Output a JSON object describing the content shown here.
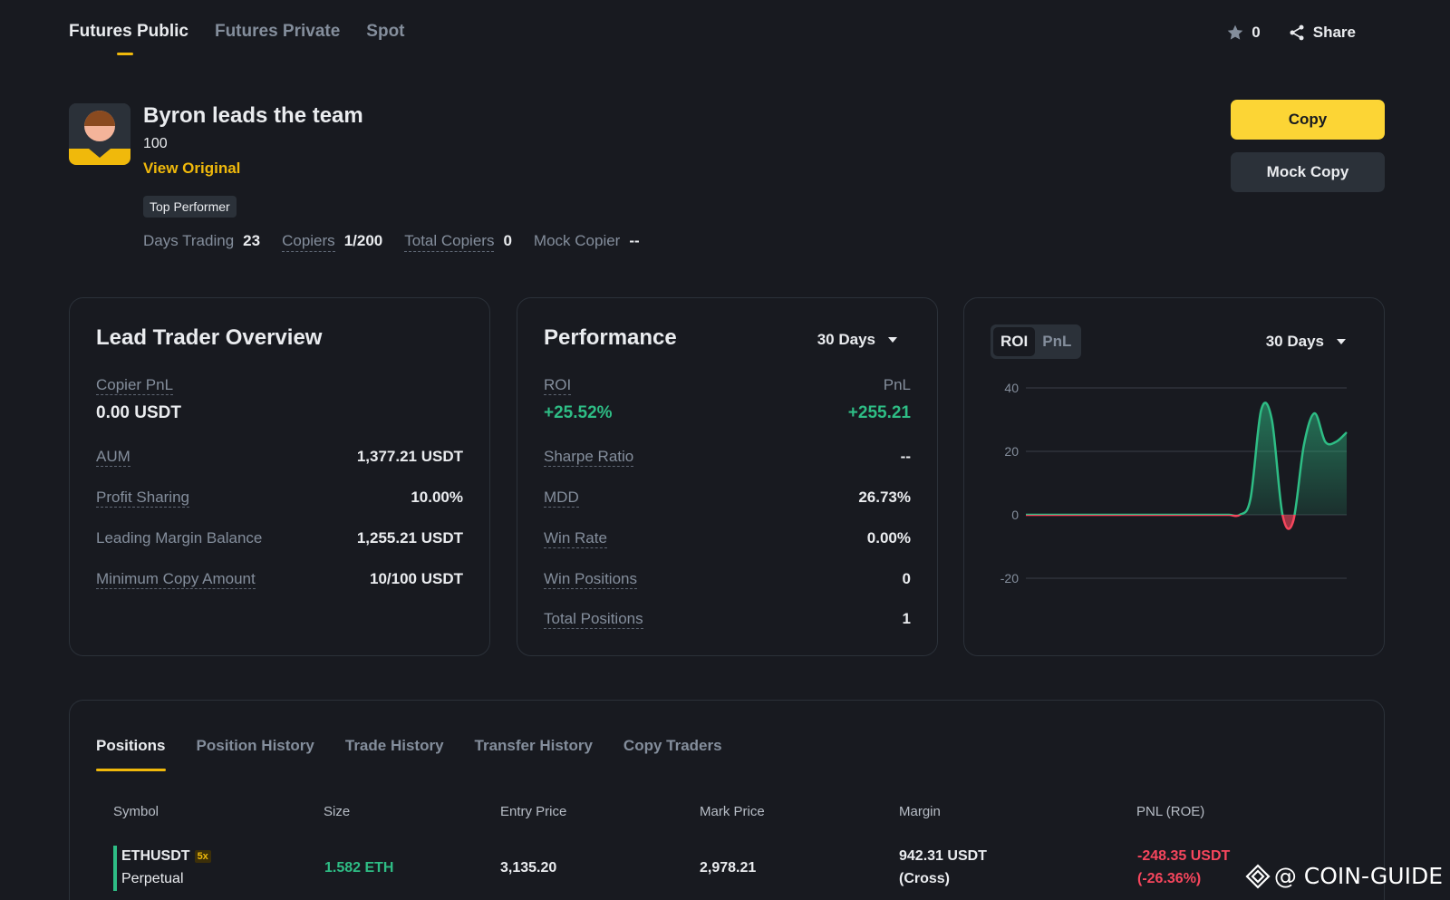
{
  "nav": {
    "tabs": [
      {
        "label": "Futures Public",
        "active": true
      },
      {
        "label": "Futures Private",
        "active": false
      },
      {
        "label": "Spot",
        "active": false
      }
    ],
    "favorite_count": "0",
    "share_label": "Share"
  },
  "profile": {
    "name": "Byron leads the team",
    "number": "100",
    "view_original": "View Original",
    "badge": "Top Performer",
    "stats": {
      "days_trading_label": "Days Trading",
      "days_trading": "23",
      "copiers_label": "Copiers",
      "copiers": "1/200",
      "total_copiers_label": "Total Copiers",
      "total_copiers": "0",
      "mock_copier_label": "Mock Copier",
      "mock_copier": "--"
    }
  },
  "actions": {
    "copy": "Copy",
    "mock_copy": "Mock Copy"
  },
  "overview": {
    "title": "Lead Trader Overview",
    "copier_pnl_label": "Copier PnL",
    "copier_pnl": "0.00 USDT",
    "rows": [
      {
        "label": "AUM",
        "value": "1,377.21 USDT"
      },
      {
        "label": "Profit Sharing",
        "value": "10.00%"
      },
      {
        "label": "Leading Margin Balance",
        "value": "1,255.21 USDT"
      },
      {
        "label": "Minimum Copy Amount",
        "value": "10/100 USDT"
      }
    ]
  },
  "performance": {
    "title": "Performance",
    "period": "30 Days",
    "roi_label": "ROI",
    "roi": "+25.52%",
    "pnl_label": "PnL",
    "pnl": "+255.21",
    "rows": [
      {
        "label": "Sharpe Ratio",
        "value": "--"
      },
      {
        "label": "MDD",
        "value": "26.73%"
      },
      {
        "label": "Win Rate",
        "value": "0.00%"
      },
      {
        "label": "Win Positions",
        "value": "0"
      },
      {
        "label": "Total Positions",
        "value": "1"
      }
    ]
  },
  "chart_panel": {
    "toggle": [
      "ROI",
      "PnL"
    ],
    "active": "ROI",
    "period": "30 Days"
  },
  "chart_data": {
    "type": "area",
    "series": [
      {
        "values": [
          0,
          0,
          0,
          0,
          0,
          0,
          0,
          0,
          0,
          0,
          0,
          0,
          0,
          0,
          0,
          0,
          0,
          0,
          0,
          0,
          0,
          5,
          33,
          30,
          0,
          -2,
          22,
          32,
          23,
          23,
          26
        ]
      }
    ],
    "ylim": [
      -20,
      40
    ],
    "yticks": [
      "40",
      "20",
      "0",
      "-20"
    ],
    "grid": true,
    "colors": {
      "positive": "#2ebd85",
      "negative": "#f6465d"
    }
  },
  "positions": {
    "tabs": [
      "Positions",
      "Position History",
      "Trade History",
      "Transfer History",
      "Copy Traders"
    ],
    "active_tab": "Positions",
    "columns": [
      "Symbol",
      "Size",
      "Entry Price",
      "Mark Price",
      "Margin",
      "PNL (ROE)"
    ],
    "rows": [
      {
        "symbol": "ETHUSDT",
        "leverage": "5x",
        "contract": "Perpetual",
        "size": "1.582 ETH",
        "entry": "3,135.20",
        "mark": "2,978.21",
        "margin": "942.31 USDT",
        "margin_mode": "(Cross)",
        "pnl": "-248.35 USDT",
        "roe": "(-26.36%)"
      }
    ]
  },
  "watermark": "@ COIN-GUIDE"
}
